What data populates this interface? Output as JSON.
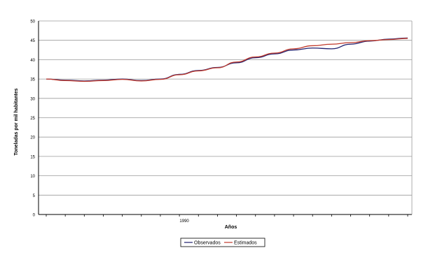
{
  "chart_data": {
    "type": "line",
    "xlabel": "Años",
    "ylabel": "Toneladas por mil habitantes",
    "ylim": [
      0,
      50
    ],
    "yticks": [
      0,
      5,
      10,
      15,
      20,
      25,
      30,
      35,
      40,
      45,
      50
    ],
    "x_tick_label": "1990",
    "x_tick_label_index": 7,
    "x": [
      0,
      1,
      2,
      3,
      4,
      5,
      6,
      7,
      8,
      9,
      10,
      11,
      12,
      13,
      14,
      15,
      16,
      17,
      18,
      19
    ],
    "grid": true,
    "legend_position": "bottom",
    "series": [
      {
        "name": "Observados",
        "color": "#1f1f6e",
        "values": [
          35.0,
          34.7,
          34.5,
          34.7,
          35.0,
          34.6,
          35.0,
          36.2,
          37.2,
          38.0,
          39.2,
          40.5,
          41.5,
          42.5,
          43.0,
          42.8,
          44.0,
          44.8,
          45.3,
          45.6
        ]
      },
      {
        "name": "Estimados",
        "color": "#c0392b",
        "values": [
          35.0,
          34.6,
          34.4,
          34.6,
          34.9,
          34.5,
          34.9,
          36.1,
          37.1,
          37.9,
          39.4,
          40.7,
          41.7,
          42.8,
          43.6,
          44.0,
          44.4,
          44.9,
          45.2,
          45.5
        ]
      }
    ]
  }
}
